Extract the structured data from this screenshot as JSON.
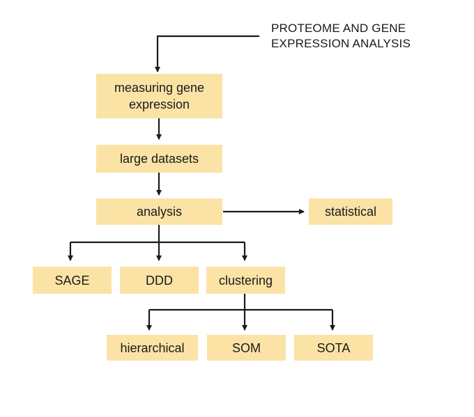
{
  "title": {
    "line1": "PROTEOME AND GENE",
    "line2": "EXPRESSION ANALYSIS"
  },
  "nodes": {
    "measuring": {
      "line1": "measuring gene",
      "line2": "expression"
    },
    "datasets": "large datasets",
    "analysis": "analysis",
    "statistical": "statistical",
    "sage": "SAGE",
    "ddd": "DDD",
    "clustering": "clustering",
    "hierarchical": "hierarchical",
    "som": "SOM",
    "sota": "SOTA"
  },
  "colors": {
    "box_fill": "#fbe3a6",
    "line": "#1a1a1a"
  }
}
